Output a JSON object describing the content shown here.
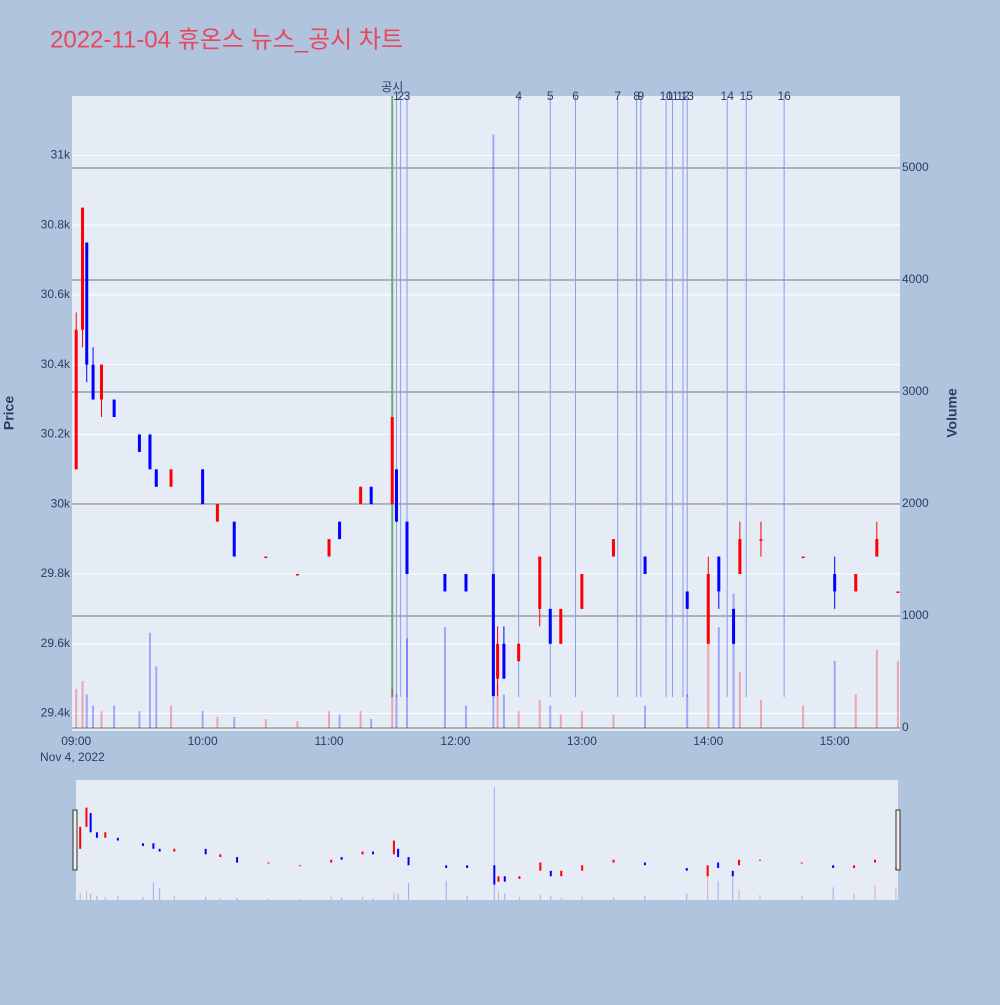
{
  "chart_data": {
    "type": "candlestick",
    "title": "2022-11-04 휴온스 뉴스_공시 차트",
    "x_subtitle": "Nov 4, 2022",
    "ylabel": "Price",
    "y2label": "Volume",
    "xlim": [
      "08:58",
      "15:31"
    ],
    "xticks": [
      "09:00",
      "10:00",
      "11:00",
      "12:00",
      "13:00",
      "14:00",
      "15:00"
    ],
    "ylim": [
      29350,
      31170
    ],
    "yticks": [
      {
        "value": 29400,
        "label": "29.4k"
      },
      {
        "value": 29600,
        "label": "29.6k"
      },
      {
        "value": 29800,
        "label": "29.8k"
      },
      {
        "value": 30000,
        "label": "30k"
      },
      {
        "value": 30200,
        "label": "30.2k"
      },
      {
        "value": 30400,
        "label": "30.4k"
      },
      {
        "value": 30600,
        "label": "30.6k"
      },
      {
        "value": 30800,
        "label": "30.8k"
      },
      {
        "value": 31000,
        "label": "31k"
      }
    ],
    "y2lim": [
      -27,
      5643
    ],
    "y2ticks": [
      0,
      1000,
      2000,
      3000,
      4000,
      5000
    ],
    "up_color": "#ff0000",
    "down_color": "#0000ff",
    "x": [
      "09:00",
      "09:03",
      "09:05",
      "09:08",
      "09:12",
      "09:18",
      "09:30",
      "09:35",
      "09:38",
      "09:45",
      "10:00",
      "10:07",
      "10:15",
      "10:30",
      "10:45",
      "11:00",
      "11:05",
      "11:15",
      "11:20",
      "11:30",
      "11:32",
      "11:37",
      "11:55",
      "12:05",
      "12:18",
      "12:20",
      "12:23",
      "12:30",
      "12:40",
      "12:45",
      "12:50",
      "13:00",
      "13:15",
      "13:30",
      "13:50",
      "14:00",
      "14:05",
      "14:12",
      "14:15",
      "14:25",
      "14:45",
      "15:00",
      "15:10",
      "15:20",
      "15:30"
    ],
    "open": [
      30100,
      30500,
      30750,
      30400,
      30300,
      30300,
      30200,
      30200,
      30100,
      30050,
      30100,
      29950,
      29950,
      29850,
      29800,
      29850,
      29950,
      30000,
      30050,
      30000,
      30100,
      29950,
      29800,
      29800,
      29800,
      29500,
      29600,
      29550,
      29700,
      29700,
      29600,
      29700,
      29850,
      29850,
      29750,
      29600,
      29850,
      29700,
      29800,
      29900,
      29850,
      29800,
      29750,
      29850,
      29750
    ],
    "high": [
      30550,
      30850,
      30750,
      30450,
      30400,
      30300,
      30200,
      30200,
      30100,
      30100,
      30100,
      30000,
      29950,
      29850,
      29800,
      29900,
      29950,
      30050,
      30050,
      30250,
      30100,
      29950,
      29800,
      29800,
      29800,
      29650,
      29650,
      29600,
      29850,
      29700,
      29700,
      29800,
      29900,
      29850,
      29750,
      29850,
      29850,
      29700,
      29950,
      29950,
      29850,
      29850,
      29800,
      29950,
      29750
    ],
    "low": [
      30100,
      30450,
      30350,
      30300,
      30250,
      30250,
      30150,
      30100,
      30050,
      30050,
      30000,
      29950,
      29850,
      29850,
      29800,
      29850,
      29900,
      30000,
      30000,
      30000,
      29950,
      29800,
      29750,
      29750,
      29450,
      29450,
      29500,
      29550,
      29650,
      29600,
      29600,
      29700,
      29850,
      29800,
      29700,
      29600,
      29700,
      29600,
      29800,
      29850,
      29850,
      29700,
      29750,
      29850,
      29750
    ],
    "close": [
      30500,
      30850,
      30400,
      30300,
      30400,
      30250,
      30150,
      30100,
      30050,
      30100,
      30000,
      30000,
      29850,
      29850,
      29800,
      29900,
      29900,
      30050,
      30000,
      30250,
      29950,
      29800,
      29750,
      29750,
      29450,
      29600,
      29500,
      29600,
      29850,
      29600,
      29700,
      29800,
      29900,
      29800,
      29700,
      29800,
      29750,
      29600,
      29900,
      29900,
      29850,
      29750,
      29800,
      29900,
      29750
    ],
    "volume": [
      350,
      420,
      300,
      200,
      150,
      200,
      150,
      850,
      550,
      200,
      150,
      100,
      100,
      80,
      60,
      150,
      120,
      150,
      80,
      350,
      300,
      800,
      900,
      200,
      5300,
      400,
      300,
      150,
      250,
      200,
      120,
      150,
      120,
      200,
      300,
      1300,
      900,
      1200,
      500,
      250,
      200,
      600,
      300,
      700,
      600
    ],
    "disclosure_label": "공시",
    "disclosure_x": "11:30",
    "disclosures": [
      {
        "x": "11:32",
        "label": "1"
      },
      {
        "x": "11:34",
        "label": "2"
      },
      {
        "x": "11:37",
        "label": "3"
      },
      {
        "x": "12:30",
        "label": "4"
      },
      {
        "x": "12:45",
        "label": "5"
      },
      {
        "x": "12:57",
        "label": "6"
      },
      {
        "x": "13:17",
        "label": "7"
      },
      {
        "x": "13:26",
        "label": "8"
      },
      {
        "x": "13:28",
        "label": "9"
      },
      {
        "x": "13:40",
        "label": "10"
      },
      {
        "x": "13:43",
        "label": "11"
      },
      {
        "x": "13:48",
        "label": "12"
      },
      {
        "x": "13:50",
        "label": "13"
      },
      {
        "x": "14:09",
        "label": "14"
      },
      {
        "x": "14:18",
        "label": "15"
      },
      {
        "x": "14:36",
        "label": "16"
      }
    ]
  }
}
